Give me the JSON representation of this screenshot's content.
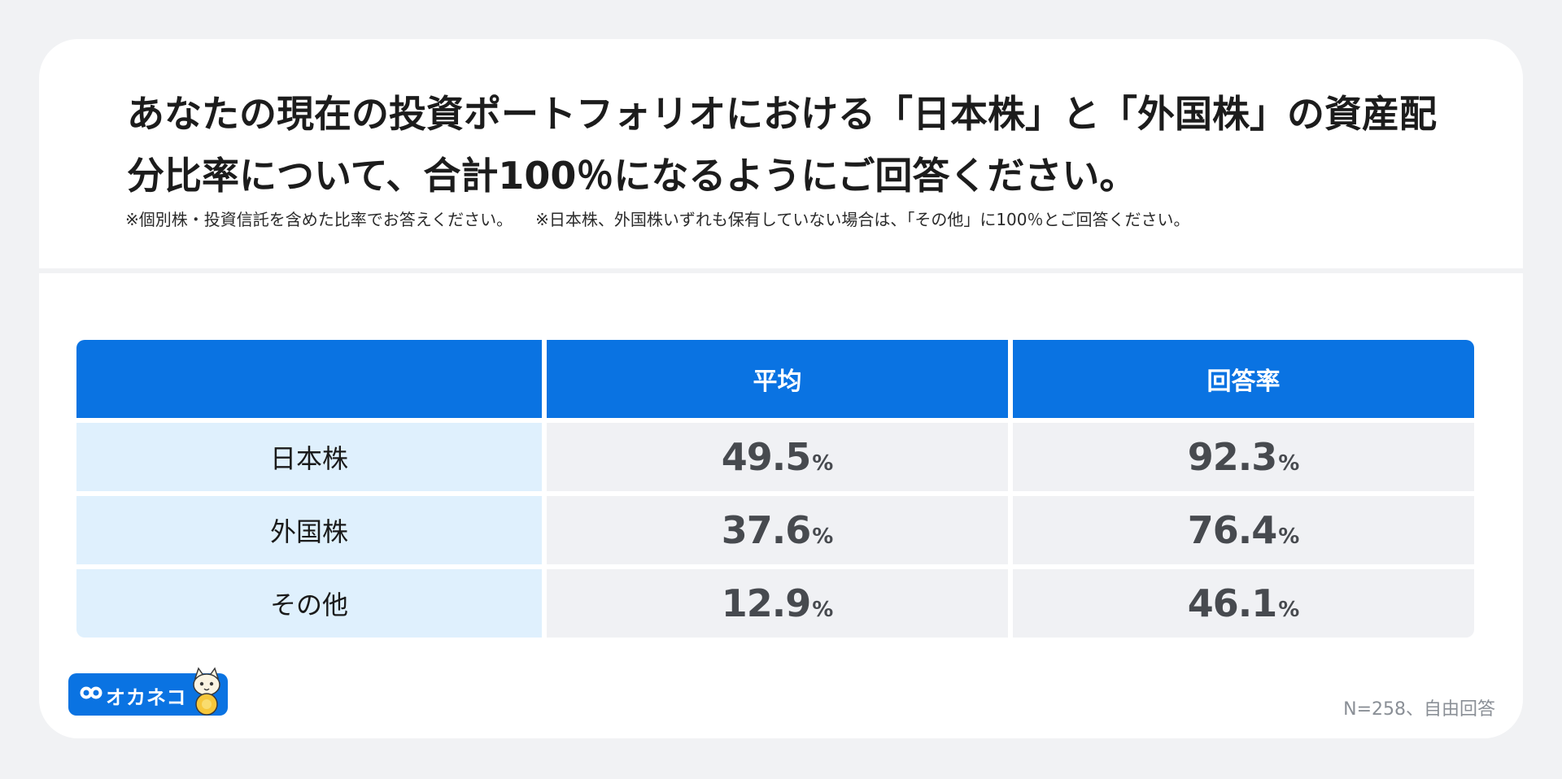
{
  "title": "あなたの現在の投資ポートフォリオにおける「日本株」と「外国株」の資産配分比率について、合計100％になるようにご回答ください。",
  "notes": [
    "※個別株・投資信託を含めた比率でお答えください。",
    "※日本株、外国株いずれも保有していない場合は、「その他」に100％とご回答ください。"
  ],
  "chart_data": {
    "type": "table",
    "columns": [
      "",
      "平均",
      "回答率"
    ],
    "rows": [
      {
        "label": "日本株",
        "average": "49.5",
        "response_rate": "92.3"
      },
      {
        "label": "外国株",
        "average": "37.6",
        "response_rate": "76.4"
      },
      {
        "label": "その他",
        "average": "12.9",
        "response_rate": "46.1"
      }
    ],
    "unit": "%"
  },
  "brand": {
    "name": "オカネコ",
    "icon": "infinity-icon",
    "mascot": "cat-mascot-icon"
  },
  "footnote": "N=258、自由回答",
  "colors": {
    "header_blue": "#0a73e2",
    "label_bg": "#dff0fd",
    "cell_bg": "#f0f1f4",
    "value_text": "#474a4f"
  }
}
